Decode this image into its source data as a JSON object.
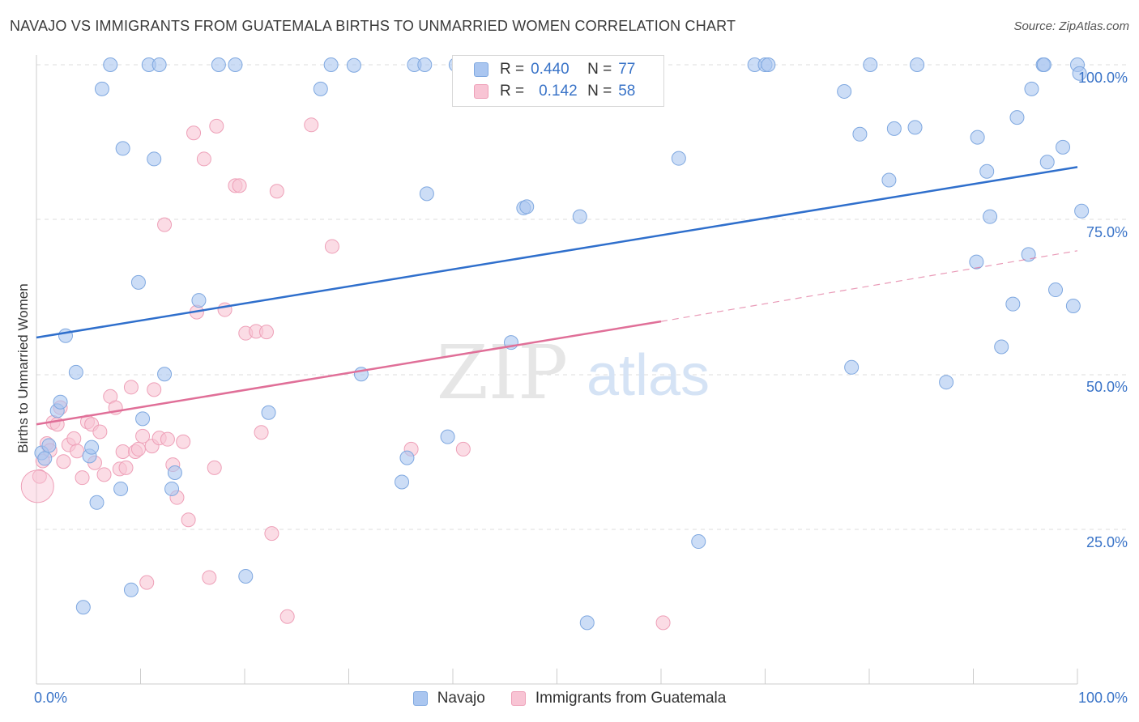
{
  "title": "NAVAJO VS IMMIGRANTS FROM GUATEMALA BIRTHS TO UNMARRIED WOMEN CORRELATION CHART",
  "source": "Source: ZipAtlas.com",
  "watermark": {
    "zip": "ZIP",
    "atlas": "atlas"
  },
  "legend_top": {
    "rows": [
      {
        "r_label": "R =",
        "r_value": "0.440",
        "n_label": "N =",
        "n_value": "77"
      },
      {
        "r_label": "R =",
        "r_value": "0.142",
        "n_label": "N =",
        "n_value": "58"
      }
    ]
  },
  "legend_bottom": {
    "series1": "Navajo",
    "series2": "Immigrants from Guatemala"
  },
  "axes": {
    "x_min_label": "0.0%",
    "x_max_label": "100.0%",
    "y_ticks": [
      "100.0%",
      "75.0%",
      "50.0%",
      "25.0%"
    ],
    "ylabel": "Births to Unmarried Women"
  },
  "colors": {
    "navajo_fill": "#aac6f0",
    "navajo_stroke": "#7fa8e0",
    "navajo_line": "#2f6fcc",
    "guatemala_fill": "#f8c4d4",
    "guatemala_stroke": "#eea0b8",
    "guatemala_line": "#e06f98",
    "accent_text": "#3a74c8"
  },
  "chart_data": {
    "type": "scatter",
    "xlabel": "",
    "ylabel": "Births to Unmarried Women",
    "xlim": [
      0,
      100
    ],
    "ylim": [
      0,
      100
    ],
    "grid": true,
    "series": [
      {
        "name": "Navajo",
        "r": 0.44,
        "n": 77,
        "trend": {
          "x": [
            0,
            100
          ],
          "y": [
            56.0,
            83.5
          ]
        },
        "points": [
          [
            0.5,
            37.4
          ],
          [
            0.8,
            36.5
          ],
          [
            1.2,
            38.6
          ],
          [
            2,
            44.2
          ],
          [
            2.3,
            45.6
          ],
          [
            2.8,
            56.3
          ],
          [
            3.8,
            50.4
          ],
          [
            4.5,
            12.5
          ],
          [
            5.1,
            36.9
          ],
          [
            5.3,
            38.3
          ],
          [
            5.8,
            29.4
          ],
          [
            6.3,
            96.1
          ],
          [
            7.1,
            100
          ],
          [
            8.1,
            31.6
          ],
          [
            8.3,
            86.5
          ],
          [
            9.1,
            15.3
          ],
          [
            9.8,
            64.9
          ],
          [
            10.2,
            42.9
          ],
          [
            10.8,
            100
          ],
          [
            11.3,
            84.8
          ],
          [
            11.8,
            100
          ],
          [
            12.3,
            50.1
          ],
          [
            13,
            31.6
          ],
          [
            13.3,
            34.2
          ],
          [
            15.6,
            62.0
          ],
          [
            17.5,
            100
          ],
          [
            19.1,
            100
          ],
          [
            20.1,
            17.5
          ],
          [
            22.3,
            43.9
          ],
          [
            27.3,
            96.1
          ],
          [
            28.3,
            100
          ],
          [
            30.5,
            99.9
          ],
          [
            31.2,
            50.1
          ],
          [
            35.6,
            36.6
          ],
          [
            35.1,
            32.7
          ],
          [
            36.3,
            100
          ],
          [
            37.3,
            100
          ],
          [
            37.5,
            79.2
          ],
          [
            39.5,
            40.0
          ],
          [
            40.3,
            100
          ],
          [
            45.6,
            55.2
          ],
          [
            46.8,
            76.9
          ],
          [
            47.1,
            77.1
          ],
          [
            52.2,
            75.5
          ],
          [
            52.9,
            10.0
          ],
          [
            61.7,
            84.9
          ],
          [
            63.6,
            23.1
          ],
          [
            69,
            100
          ],
          [
            70,
            100
          ],
          [
            70.3,
            100
          ],
          [
            77.6,
            95.7
          ],
          [
            78.3,
            51.2
          ],
          [
            79.1,
            88.8
          ],
          [
            80.1,
            100
          ],
          [
            81.9,
            81.4
          ],
          [
            82.4,
            89.7
          ],
          [
            84.4,
            89.9
          ],
          [
            84.6,
            100
          ],
          [
            87.4,
            48.8
          ],
          [
            90.4,
            88.3
          ],
          [
            90.3,
            68.2
          ],
          [
            91.3,
            82.8
          ],
          [
            91.6,
            75.5
          ],
          [
            92.7,
            54.5
          ],
          [
            93.8,
            61.4
          ],
          [
            94.2,
            91.5
          ],
          [
            95.6,
            96.1
          ],
          [
            95.3,
            69.4
          ],
          [
            96.7,
            100
          ],
          [
            96.8,
            100
          ],
          [
            97.1,
            84.3
          ],
          [
            97.9,
            63.7
          ],
          [
            98.6,
            86.7
          ],
          [
            99.6,
            61.1
          ],
          [
            100,
            100
          ],
          [
            100.2,
            98.6
          ],
          [
            100.4,
            76.4
          ]
        ]
      },
      {
        "name": "Immigrants from Guatemala",
        "r": 0.142,
        "n": 58,
        "trend_solid": {
          "x": [
            0,
            60
          ],
          "y": [
            42.0,
            58.6
          ]
        },
        "trend_dashed": {
          "x": [
            60,
            100
          ],
          "y": [
            58.6,
            70.0
          ]
        },
        "points": [
          [
            0.3,
            33.6
          ],
          [
            0.6,
            36.1
          ],
          [
            1,
            38.9
          ],
          [
            1.3,
            37.8
          ],
          [
            1.6,
            42.3
          ],
          [
            2,
            42.0
          ],
          [
            2.3,
            44.7
          ],
          [
            2.6,
            36.0
          ],
          [
            3.1,
            38.7
          ],
          [
            3.6,
            39.7
          ],
          [
            3.9,
            37.7
          ],
          [
            4.4,
            33.4
          ],
          [
            4.9,
            42.4
          ],
          [
            5.3,
            42.0
          ],
          [
            5.6,
            35.8
          ],
          [
            6.1,
            40.8
          ],
          [
            6.5,
            33.9
          ],
          [
            7.1,
            46.5
          ],
          [
            7.6,
            44.7
          ],
          [
            8,
            34.8
          ],
          [
            8.3,
            37.6
          ],
          [
            8.6,
            35.0
          ],
          [
            9.1,
            48.0
          ],
          [
            9.5,
            37.6
          ],
          [
            9.8,
            38.0
          ],
          [
            10.2,
            40.1
          ],
          [
            10.6,
            16.5
          ],
          [
            11.1,
            38.5
          ],
          [
            11.3,
            47.6
          ],
          [
            11.8,
            39.8
          ],
          [
            12.3,
            74.2
          ],
          [
            12.6,
            39.6
          ],
          [
            13.1,
            35.5
          ],
          [
            13.5,
            30.2
          ],
          [
            14.1,
            39.2
          ],
          [
            14.6,
            26.6
          ],
          [
            15.1,
            89.0
          ],
          [
            15.4,
            60.1
          ],
          [
            16.1,
            84.8
          ],
          [
            16.6,
            17.3
          ],
          [
            17.1,
            35.0
          ],
          [
            17.3,
            90.1
          ],
          [
            18.1,
            60.5
          ],
          [
            19.1,
            80.5
          ],
          [
            19.5,
            80.5
          ],
          [
            20.1,
            56.7
          ],
          [
            21.1,
            57.0
          ],
          [
            21.6,
            40.7
          ],
          [
            22.1,
            56.9
          ],
          [
            22.6,
            24.4
          ],
          [
            23.1,
            79.6
          ],
          [
            24.1,
            11.0
          ],
          [
            26.4,
            90.3
          ],
          [
            28.4,
            70.7
          ],
          [
            36,
            38.0
          ],
          [
            41,
            38.0
          ],
          [
            60.2,
            10.0
          ],
          [
            0.1,
            32.0
          ]
        ]
      }
    ]
  }
}
